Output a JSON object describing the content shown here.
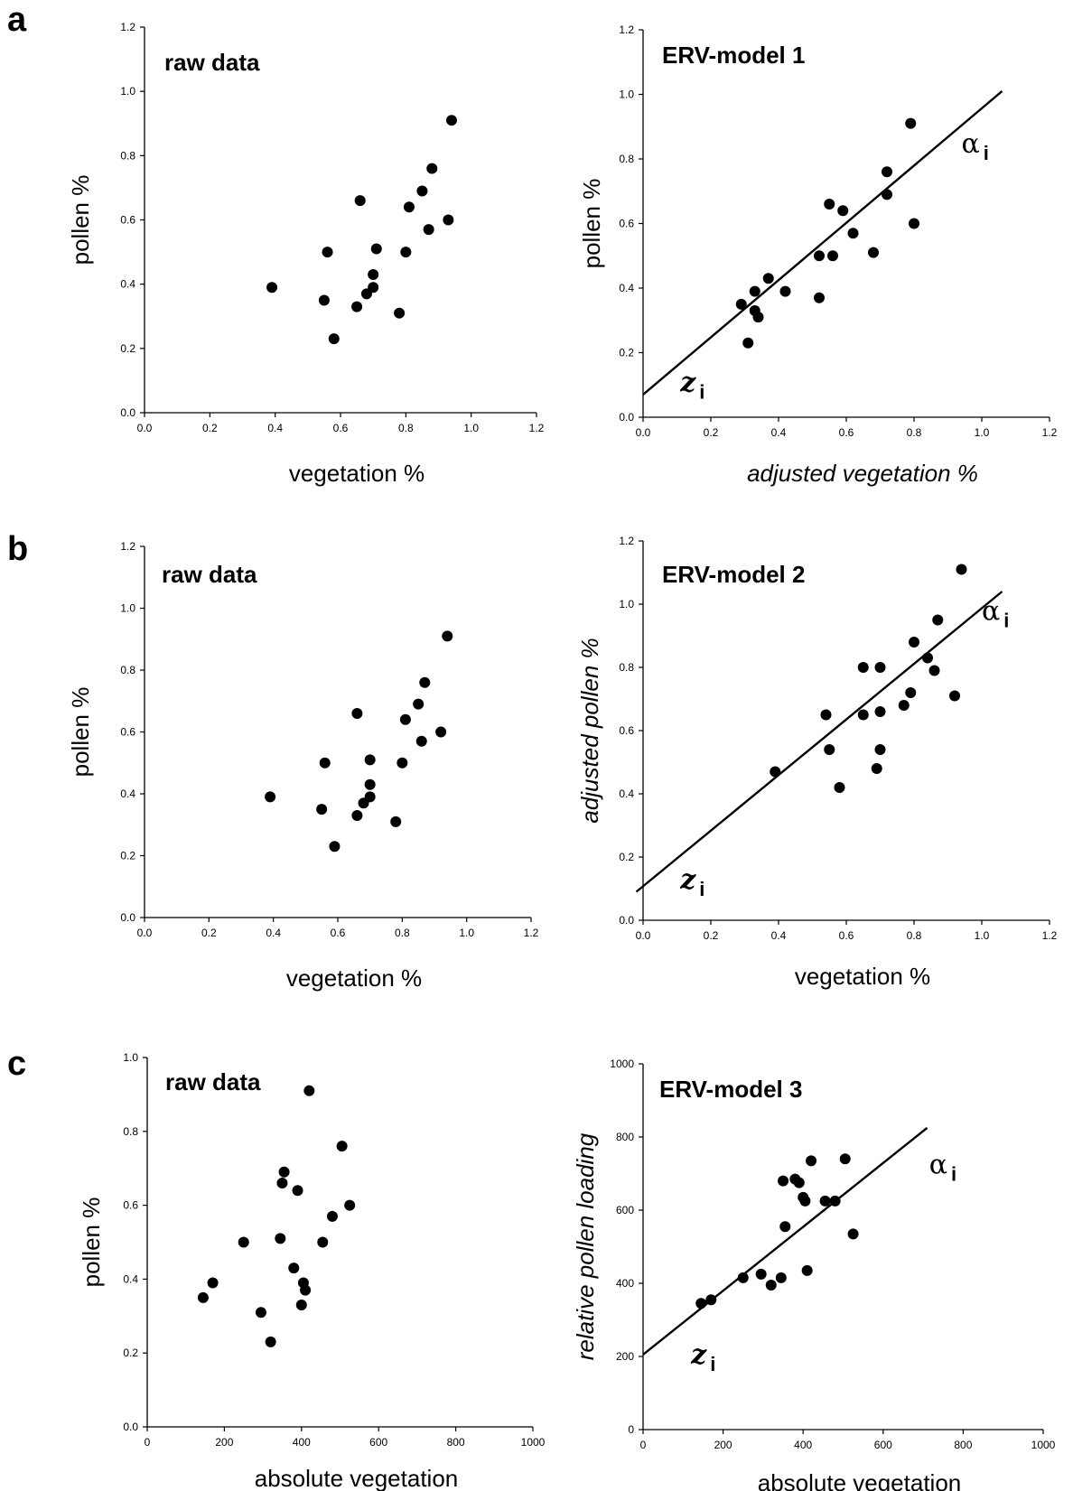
{
  "panel_labels": [
    "a",
    "b",
    "c"
  ],
  "chart_data": [
    {
      "panel": "a",
      "type": "scatter",
      "title": "raw data",
      "xlabel": "vegetation %",
      "ylabel": "pollen %",
      "xlim": [
        0,
        1.2
      ],
      "ylim": [
        0,
        1.2
      ],
      "xticks": [
        "0.0",
        "0.2",
        "0.4",
        "0.6",
        "0.8",
        "1.0",
        "1.2"
      ],
      "yticks": [
        "0.0",
        "0.2",
        "0.4",
        "0.6",
        "0.8",
        "1.0",
        "1.2"
      ],
      "grid": false,
      "points": [
        [
          0.39,
          0.39
        ],
        [
          0.55,
          0.35
        ],
        [
          0.56,
          0.5
        ],
        [
          0.58,
          0.23
        ],
        [
          0.65,
          0.33
        ],
        [
          0.66,
          0.66
        ],
        [
          0.68,
          0.37
        ],
        [
          0.7,
          0.43
        ],
        [
          0.7,
          0.39
        ],
        [
          0.71,
          0.51
        ],
        [
          0.78,
          0.31
        ],
        [
          0.8,
          0.5
        ],
        [
          0.81,
          0.64
        ],
        [
          0.85,
          0.69
        ],
        [
          0.87,
          0.57
        ],
        [
          0.88,
          0.76
        ],
        [
          0.93,
          0.6
        ],
        [
          0.94,
          0.91
        ]
      ],
      "annotations": []
    },
    {
      "panel": "a",
      "type": "scatter",
      "title": "ERV-model 1",
      "xlabel": "adjusted vegetation %",
      "ylabel": "pollen %",
      "xlim": [
        0,
        1.2
      ],
      "ylim": [
        0,
        1.2
      ],
      "xticks": [
        "0.0",
        "0.2",
        "0.4",
        "0.6",
        "0.8",
        "1.0",
        "1.2"
      ],
      "yticks": [
        "0.0",
        "0.2",
        "0.4",
        "0.6",
        "0.8",
        "1.0",
        "1.2"
      ],
      "grid": false,
      "points": [
        [
          0.29,
          0.35
        ],
        [
          0.31,
          0.23
        ],
        [
          0.33,
          0.39
        ],
        [
          0.33,
          0.33
        ],
        [
          0.34,
          0.31
        ],
        [
          0.37,
          0.43
        ],
        [
          0.42,
          0.39
        ],
        [
          0.52,
          0.37
        ],
        [
          0.52,
          0.5
        ],
        [
          0.55,
          0.66
        ],
        [
          0.56,
          0.5
        ],
        [
          0.59,
          0.64
        ],
        [
          0.62,
          0.57
        ],
        [
          0.68,
          0.51
        ],
        [
          0.72,
          0.76
        ],
        [
          0.72,
          0.69
        ],
        [
          0.79,
          0.91
        ],
        [
          0.8,
          0.6
        ]
      ],
      "regression_line": [
        [
          0.0,
          0.07
        ],
        [
          1.06,
          1.01
        ]
      ],
      "annotations": [
        {
          "label": "α",
          "sub": "i",
          "x": 0.94,
          "y": 0.82
        },
        {
          "label": "z",
          "sub": "i",
          "x": 0.11,
          "y": 0.08
        }
      ]
    },
    {
      "panel": "b",
      "type": "scatter",
      "title": "raw data",
      "xlabel": "vegetation %",
      "ylabel": "pollen %",
      "xlim": [
        0,
        1.2
      ],
      "ylim": [
        0,
        1.2
      ],
      "xticks": [
        "0.0",
        "0.2",
        "0.4",
        "0.6",
        "0.8",
        "1.0",
        "1.2"
      ],
      "yticks": [
        "0.0",
        "0.2",
        "0.4",
        "0.6",
        "0.8",
        "1.0",
        "1.2"
      ],
      "grid": false,
      "points": [
        [
          0.39,
          0.39
        ],
        [
          0.55,
          0.35
        ],
        [
          0.56,
          0.5
        ],
        [
          0.59,
          0.23
        ],
        [
          0.66,
          0.33
        ],
        [
          0.66,
          0.66
        ],
        [
          0.68,
          0.37
        ],
        [
          0.7,
          0.43
        ],
        [
          0.7,
          0.39
        ],
        [
          0.7,
          0.51
        ],
        [
          0.78,
          0.31
        ],
        [
          0.8,
          0.5
        ],
        [
          0.81,
          0.64
        ],
        [
          0.85,
          0.69
        ],
        [
          0.86,
          0.57
        ],
        [
          0.87,
          0.76
        ],
        [
          0.92,
          0.6
        ],
        [
          0.94,
          0.91
        ]
      ],
      "annotations": []
    },
    {
      "panel": "b",
      "type": "scatter",
      "title": "ERV-model 2",
      "xlabel": "vegetation %",
      "ylabel": "adjusted pollen %",
      "xlim": [
        0,
        1.2
      ],
      "ylim": [
        0,
        1.2
      ],
      "xticks": [
        "0.0",
        "0.2",
        "0.4",
        "0.6",
        "0.8",
        "1.0",
        "1.2"
      ],
      "yticks": [
        "0.0",
        "0.2",
        "0.4",
        "0.6",
        "0.8",
        "1.0",
        "1.2"
      ],
      "grid": false,
      "points": [
        [
          0.39,
          0.47
        ],
        [
          0.54,
          0.65
        ],
        [
          0.55,
          0.54
        ],
        [
          0.58,
          0.42
        ],
        [
          0.65,
          0.65
        ],
        [
          0.65,
          0.8
        ],
        [
          0.69,
          0.48
        ],
        [
          0.7,
          0.8
        ],
        [
          0.7,
          0.66
        ],
        [
          0.7,
          0.54
        ],
        [
          0.77,
          0.68
        ],
        [
          0.79,
          0.72
        ],
        [
          0.8,
          0.88
        ],
        [
          0.84,
          0.83
        ],
        [
          0.86,
          0.79
        ],
        [
          0.87,
          0.95
        ],
        [
          0.92,
          0.71
        ],
        [
          0.94,
          1.11
        ]
      ],
      "regression_line": [
        [
          -0.02,
          0.09
        ],
        [
          1.06,
          1.04
        ]
      ],
      "annotations": [
        {
          "label": "α",
          "sub": "i",
          "x": 1.0,
          "y": 0.95
        },
        {
          "label": "z",
          "sub": "i",
          "x": 0.11,
          "y": 0.1
        }
      ]
    },
    {
      "panel": "c",
      "type": "scatter",
      "title": "raw data",
      "xlabel": "absolute vegetation",
      "ylabel": "pollen %",
      "xlim": [
        0,
        1000
      ],
      "ylim": [
        0,
        1.0
      ],
      "xticks": [
        "0",
        "200",
        "400",
        "600",
        "800",
        "1000"
      ],
      "yticks": [
        "0.0",
        "0.2",
        "0.4",
        "0.6",
        "0.8",
        "1.0"
      ],
      "grid": false,
      "points": [
        [
          145,
          0.35
        ],
        [
          170,
          0.39
        ],
        [
          250,
          0.5
        ],
        [
          295,
          0.31
        ],
        [
          320,
          0.23
        ],
        [
          345,
          0.51
        ],
        [
          350,
          0.66
        ],
        [
          355,
          0.69
        ],
        [
          380,
          0.43
        ],
        [
          390,
          0.64
        ],
        [
          400,
          0.33
        ],
        [
          405,
          0.39
        ],
        [
          410,
          0.37
        ],
        [
          420,
          0.91
        ],
        [
          455,
          0.5
        ],
        [
          480,
          0.57
        ],
        [
          505,
          0.76
        ],
        [
          525,
          0.6
        ]
      ],
      "annotations": []
    },
    {
      "panel": "c",
      "type": "scatter",
      "title": "ERV-model 3",
      "xlabel": "absolute vegetation",
      "ylabel": "relative pollen loading",
      "xlim": [
        0,
        1000
      ],
      "ylim": [
        0,
        1000
      ],
      "xticks": [
        "0",
        "200",
        "400",
        "600",
        "800",
        "1000"
      ],
      "yticks": [
        "0",
        "200",
        "400",
        "600",
        "800",
        "1000"
      ],
      "grid": false,
      "points": [
        [
          145,
          345
        ],
        [
          170,
          355
        ],
        [
          250,
          415
        ],
        [
          295,
          425
        ],
        [
          320,
          395
        ],
        [
          345,
          415
        ],
        [
          350,
          680
        ],
        [
          355,
          555
        ],
        [
          380,
          685
        ],
        [
          390,
          675
        ],
        [
          400,
          635
        ],
        [
          405,
          625
        ],
        [
          410,
          435
        ],
        [
          420,
          735
        ],
        [
          455,
          625
        ],
        [
          480,
          625
        ],
        [
          505,
          740
        ],
        [
          525,
          535
        ]
      ],
      "regression_line": [
        [
          0,
          205
        ],
        [
          710,
          825
        ]
      ],
      "annotations": [
        {
          "label": "α",
          "sub": "i",
          "x": 715,
          "y": 700
        },
        {
          "label": "z",
          "sub": "i",
          "x": 120,
          "y": 180
        }
      ]
    }
  ]
}
